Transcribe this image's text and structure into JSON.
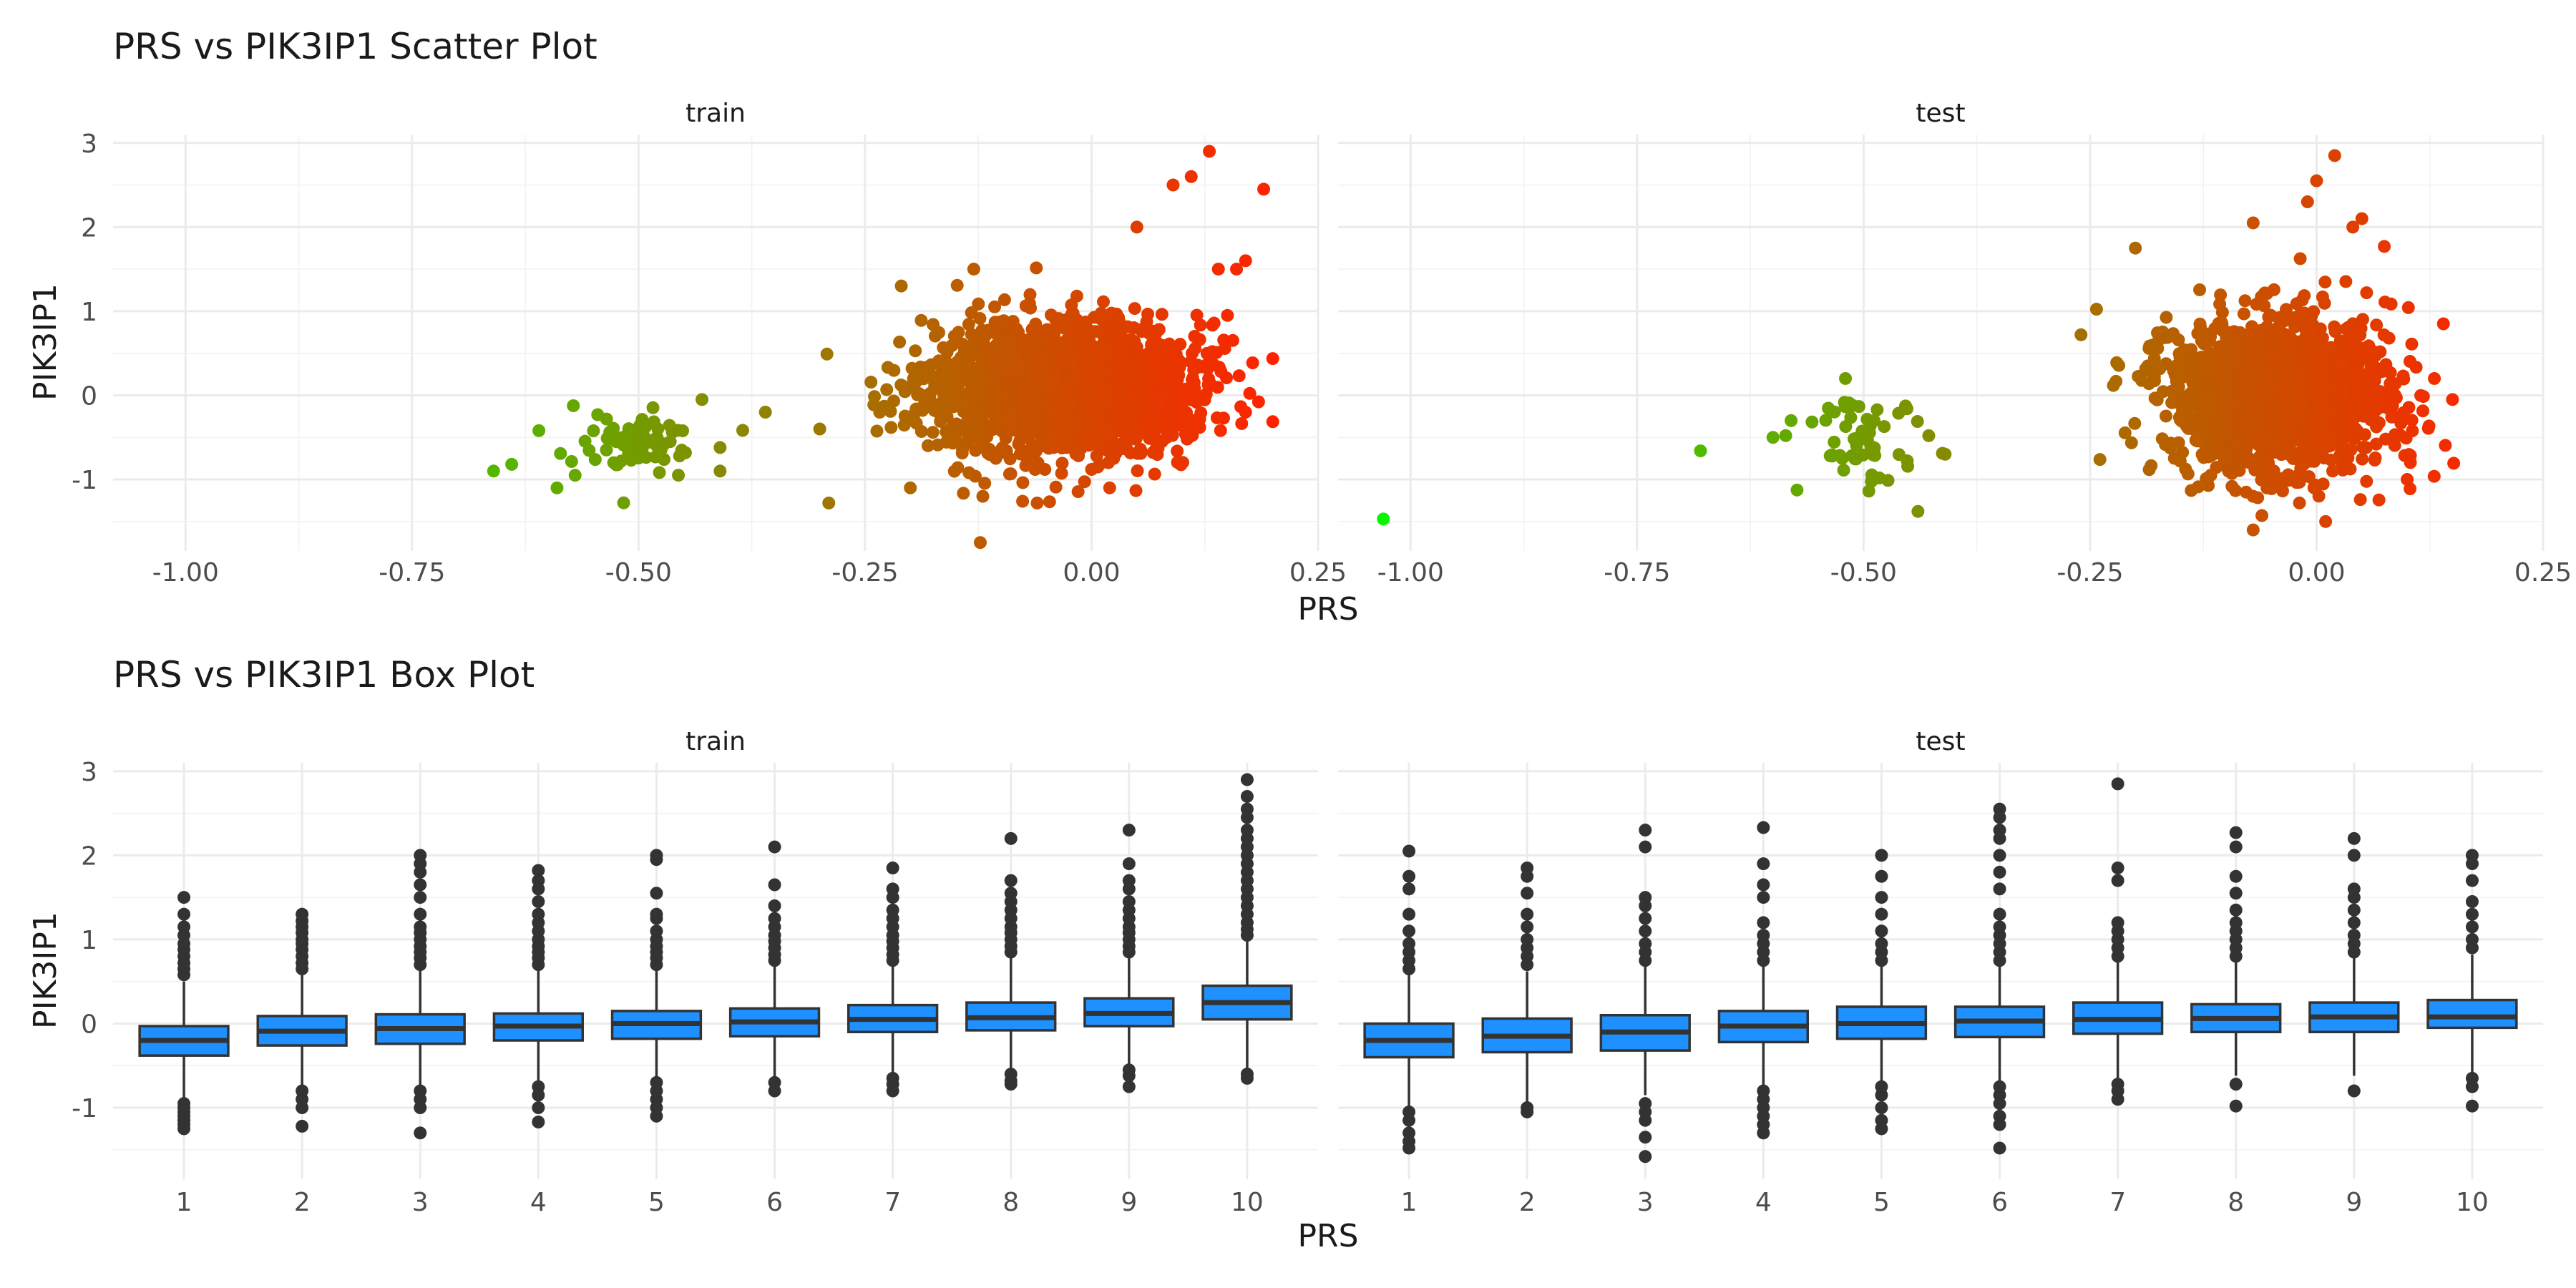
{
  "chart_data": [
    {
      "type": "scatter",
      "title": "PRS vs PIK3IP1 Scatter Plot",
      "xlabel": "PRS",
      "ylabel": "PIK3IP1",
      "xlim": [
        -1.08,
        0.25
      ],
      "ylim": [
        -1.85,
        3.1
      ],
      "x_ticks": [
        -1.0,
        -0.75,
        -0.5,
        -0.25,
        0.0,
        0.25
      ],
      "x_tick_labels": [
        "-1.00",
        "-0.75",
        "-0.50",
        "-0.25",
        "0.00",
        "0.25"
      ],
      "y_ticks": [
        -1,
        0,
        1,
        2,
        3
      ],
      "y_tick_labels": [
        "-1",
        "0",
        "1",
        "2",
        "3"
      ],
      "grid": true,
      "color_scale": {
        "low": "#00ff00",
        "high": "#ff2200"
      },
      "facets": [
        {
          "label": "train",
          "clusters": [
            {
              "center": [
                -0.5,
                -0.58
              ],
              "spread": [
                0.035,
                0.18
              ],
              "n": 70
            },
            {
              "center": [
                -0.03,
                0.05
              ],
              "spread": [
                0.075,
                0.4
              ],
              "n": 1800
            }
          ],
          "points": [
            [
              -0.66,
              -0.9
            ],
            [
              -0.64,
              -0.82
            ],
            [
              -0.61,
              -0.42
            ],
            [
              -0.59,
              -1.1
            ],
            [
              -0.57,
              -0.95
            ],
            [
              -0.43,
              -0.05
            ],
            [
              -0.41,
              -0.62
            ],
            [
              -0.41,
              -0.9
            ],
            [
              -0.36,
              -0.2
            ],
            [
              -0.3,
              -0.4
            ],
            [
              -0.29,
              -1.28
            ],
            [
              -0.21,
              1.3
            ],
            [
              -0.13,
              1.5
            ],
            [
              -0.2,
              -1.1
            ],
            [
              -0.12,
              -1.2
            ],
            [
              -0.06,
              -1.28
            ],
            [
              0.02,
              -1.1
            ],
            [
              0.05,
              2.0
            ],
            [
              0.09,
              2.5
            ],
            [
              0.11,
              2.6
            ],
            [
              0.13,
              2.9
            ],
            [
              0.14,
              1.5
            ],
            [
              0.16,
              1.5
            ],
            [
              0.17,
              1.6
            ],
            [
              0.19,
              2.45
            ],
            [
              0.17,
              -0.2
            ],
            [
              0.11,
              -0.48
            ],
            [
              0.15,
              0.95
            ]
          ]
        },
        {
          "label": "test",
          "clusters": [
            {
              "center": [
                -0.5,
                -0.55
              ],
              "spread": [
                0.035,
                0.22
              ],
              "n": 55
            },
            {
              "center": [
                -0.04,
                0.0
              ],
              "spread": [
                0.06,
                0.45
              ],
              "n": 1700
            }
          ],
          "points": [
            [
              -1.03,
              -1.47
            ],
            [
              -0.68,
              -0.66
            ],
            [
              -0.6,
              -0.5
            ],
            [
              -0.58,
              -0.3
            ],
            [
              -0.52,
              0.2
            ],
            [
              -0.44,
              -1.38
            ],
            [
              -0.41,
              -0.7
            ],
            [
              -0.26,
              0.72
            ],
            [
              -0.2,
              1.75
            ],
            [
              -0.07,
              2.05
            ],
            [
              -0.01,
              2.3
            ],
            [
              0.0,
              2.55
            ],
            [
              0.02,
              2.85
            ],
            [
              0.04,
              2.0
            ],
            [
              0.05,
              2.1
            ],
            [
              -0.07,
              -1.2
            ],
            [
              0.01,
              -1.5
            ],
            [
              -0.07,
              -1.6
            ],
            [
              0.1,
              -1.0
            ],
            [
              0.14,
              0.85
            ],
            [
              0.15,
              -0.05
            ],
            [
              0.13,
              0.2
            ]
          ]
        }
      ]
    },
    {
      "type": "box",
      "title": "PRS vs PIK3IP1 Box Plot",
      "xlabel": "PRS",
      "ylabel": "PIK3IP1",
      "categories": [
        "1",
        "2",
        "3",
        "4",
        "5",
        "6",
        "7",
        "8",
        "9",
        "10"
      ],
      "ylim": [
        -1.85,
        3.1
      ],
      "y_ticks": [
        -1,
        0,
        1,
        2,
        3
      ],
      "y_tick_labels": [
        "-1",
        "0",
        "1",
        "2",
        "3"
      ],
      "grid": true,
      "box_fill": "#1e90ff",
      "box_stroke": "#333333",
      "facets": [
        {
          "label": "train",
          "boxes": [
            {
              "q1": -0.38,
              "median": -0.2,
              "q3": -0.03,
              "whisker_low": -0.88,
              "whisker_high": 0.5,
              "outliers": [
                -0.95,
                -1.0,
                -1.05,
                -1.1,
                -1.15,
                -1.2,
                -1.25,
                0.58,
                0.65,
                0.72,
                0.8,
                0.88,
                0.95,
                1.05,
                1.15,
                1.3,
                1.5
              ]
            },
            {
              "q1": -0.26,
              "median": -0.09,
              "q3": 0.09,
              "whisker_low": -0.75,
              "whisker_high": 0.6,
              "outliers": [
                -0.8,
                -0.9,
                -1.0,
                -1.22,
                0.65,
                0.72,
                0.8,
                0.88,
                0.95,
                1.0,
                1.08,
                1.15,
                1.22,
                1.3
              ]
            },
            {
              "q1": -0.24,
              "median": -0.06,
              "q3": 0.11,
              "whisker_low": -0.75,
              "whisker_high": 0.65,
              "outliers": [
                -0.8,
                -0.9,
                -1.0,
                -1.3,
                0.7,
                0.78,
                0.85,
                0.92,
                1.0,
                1.08,
                1.15,
                1.3,
                1.5,
                1.65,
                1.8,
                1.9,
                2.0
              ]
            },
            {
              "q1": -0.2,
              "median": -0.03,
              "q3": 0.12,
              "whisker_low": -0.7,
              "whisker_high": 0.65,
              "outliers": [
                -0.75,
                -0.85,
                -1.0,
                -1.17,
                0.7,
                0.78,
                0.85,
                0.92,
                1.0,
                1.1,
                1.2,
                1.3,
                1.45,
                1.6,
                1.7,
                1.82
              ]
            },
            {
              "q1": -0.18,
              "median": 0.0,
              "q3": 0.15,
              "whisker_low": -0.65,
              "whisker_high": 0.65,
              "outliers": [
                -0.7,
                -0.8,
                -0.9,
                -1.0,
                -1.1,
                0.7,
                0.78,
                0.85,
                0.92,
                1.0,
                1.1,
                1.25,
                1.3,
                1.55,
                1.95,
                2.0
              ]
            },
            {
              "q1": -0.15,
              "median": 0.02,
              "q3": 0.18,
              "whisker_low": -0.65,
              "whisker_high": 0.68,
              "outliers": [
                -0.7,
                -0.8,
                0.75,
                0.82,
                0.9,
                0.98,
                1.05,
                1.15,
                1.25,
                1.4,
                1.65,
                2.1
              ]
            },
            {
              "q1": -0.1,
              "median": 0.05,
              "q3": 0.22,
              "whisker_low": -0.6,
              "whisker_high": 0.7,
              "outliers": [
                -0.65,
                -0.72,
                -0.8,
                0.75,
                0.82,
                0.9,
                0.98,
                1.05,
                1.15,
                1.25,
                1.35,
                1.5,
                1.6,
                1.85
              ]
            },
            {
              "q1": -0.08,
              "median": 0.07,
              "q3": 0.25,
              "whisker_low": -0.55,
              "whisker_high": 0.8,
              "outliers": [
                -0.6,
                -0.68,
                -0.72,
                0.85,
                0.92,
                1.0,
                1.08,
                1.15,
                1.25,
                1.35,
                1.45,
                1.55,
                1.7,
                2.2
              ]
            },
            {
              "q1": -0.03,
              "median": 0.12,
              "q3": 0.3,
              "whisker_low": -0.52,
              "whisker_high": 0.8,
              "outliers": [
                -0.55,
                -0.62,
                -0.75,
                0.85,
                0.92,
                1.0,
                1.08,
                1.15,
                1.25,
                1.35,
                1.45,
                1.6,
                1.7,
                1.9,
                2.3
              ]
            },
            {
              "q1": 0.05,
              "median": 0.25,
              "q3": 0.45,
              "whisker_low": -0.55,
              "whisker_high": 1.0,
              "outliers": [
                -0.6,
                -0.65,
                1.05,
                1.12,
                1.2,
                1.3,
                1.4,
                1.5,
                1.6,
                1.7,
                1.8,
                1.9,
                2.0,
                2.1,
                2.2,
                2.3,
                2.45,
                2.55,
                2.7,
                2.9
              ]
            }
          ]
        },
        {
          "label": "test",
          "boxes": [
            {
              "q1": -0.4,
              "median": -0.2,
              "q3": 0.0,
              "whisker_low": -1.0,
              "whisker_high": 0.6,
              "outliers": [
                -1.05,
                -1.15,
                -1.3,
                -1.4,
                -1.48,
                0.65,
                0.75,
                0.85,
                0.95,
                1.1,
                1.3,
                1.6,
                1.75,
                2.05
              ]
            },
            {
              "q1": -0.34,
              "median": -0.15,
              "q3": 0.06,
              "whisker_low": -0.95,
              "whisker_high": 0.62,
              "outliers": [
                -1.0,
                -1.05,
                0.7,
                0.8,
                0.9,
                1.0,
                1.15,
                1.3,
                1.55,
                1.75,
                1.85
              ]
            },
            {
              "q1": -0.32,
              "median": -0.1,
              "q3": 0.1,
              "whisker_low": -0.85,
              "whisker_high": 0.7,
              "outliers": [
                -0.95,
                -1.05,
                -1.15,
                -1.35,
                -1.58,
                0.75,
                0.85,
                0.95,
                1.1,
                1.25,
                1.4,
                1.5,
                2.1,
                2.3
              ]
            },
            {
              "q1": -0.22,
              "median": -0.03,
              "q3": 0.15,
              "whisker_low": -0.75,
              "whisker_high": 0.68,
              "outliers": [
                -0.8,
                -0.9,
                -1.0,
                -1.1,
                -1.2,
                -1.3,
                0.75,
                0.85,
                0.95,
                1.05,
                1.2,
                1.5,
                1.65,
                1.9,
                2.33
              ]
            },
            {
              "q1": -0.18,
              "median": 0.0,
              "q3": 0.2,
              "whisker_low": -0.7,
              "whisker_high": 0.7,
              "outliers": [
                -0.75,
                -0.85,
                -1.0,
                -1.15,
                -1.25,
                0.75,
                0.85,
                0.95,
                1.1,
                1.3,
                1.5,
                1.75,
                2.0
              ]
            },
            {
              "q1": -0.16,
              "median": 0.03,
              "q3": 0.2,
              "whisker_low": -0.7,
              "whisker_high": 0.7,
              "outliers": [
                -0.75,
                -0.85,
                -0.95,
                -1.1,
                -1.2,
                -1.48,
                0.75,
                0.85,
                0.95,
                1.05,
                1.15,
                1.3,
                1.6,
                1.8,
                2.0,
                2.2,
                2.3,
                2.45,
                2.55
              ]
            },
            {
              "q1": -0.12,
              "median": 0.05,
              "q3": 0.25,
              "whisker_low": -0.65,
              "whisker_high": 0.75,
              "outliers": [
                -0.72,
                -0.8,
                -0.9,
                0.8,
                0.9,
                1.0,
                1.1,
                1.2,
                1.7,
                1.85,
                2.85
              ]
            },
            {
              "q1": -0.1,
              "median": 0.06,
              "q3": 0.23,
              "whisker_low": -0.62,
              "whisker_high": 0.75,
              "outliers": [
                -0.72,
                -0.98,
                0.8,
                0.9,
                1.0,
                1.1,
                1.2,
                1.35,
                1.55,
                1.75,
                2.1,
                2.27
              ]
            },
            {
              "q1": -0.1,
              "median": 0.08,
              "q3": 0.25,
              "whisker_low": -0.62,
              "whisker_high": 0.78,
              "outliers": [
                -0.8,
                0.85,
                0.95,
                1.05,
                1.2,
                1.35,
                1.5,
                1.6,
                2.0,
                2.2
              ]
            },
            {
              "q1": -0.05,
              "median": 0.08,
              "q3": 0.28,
              "whisker_low": -0.58,
              "whisker_high": 0.82,
              "outliers": [
                -0.65,
                -0.75,
                -0.98,
                0.9,
                1.0,
                1.15,
                1.3,
                1.45,
                1.7,
                1.9,
                2.0
              ]
            }
          ]
        }
      ]
    }
  ]
}
